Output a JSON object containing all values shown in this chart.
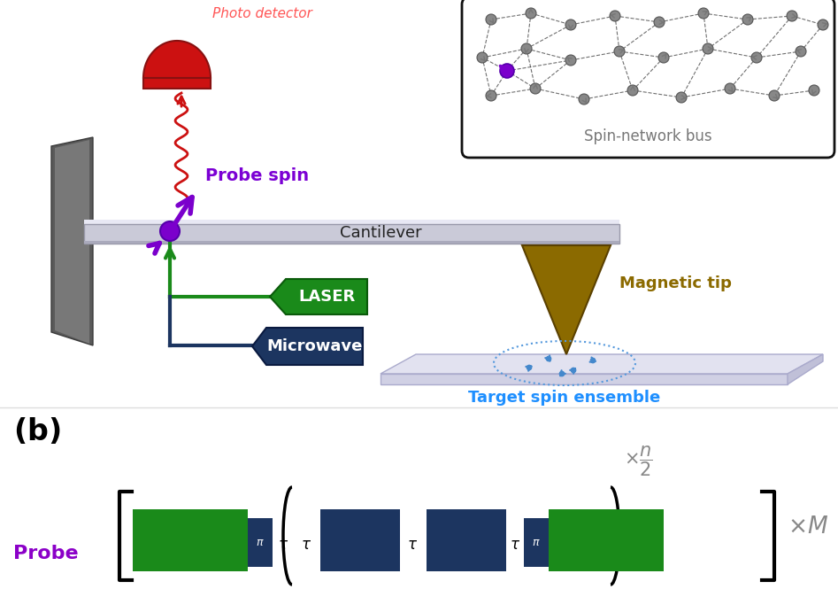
{
  "probe_label": "Probe",
  "probe_color": "#8B00C8",
  "probe_spin_label": "Probe spin",
  "probe_spin_color": "#7B00D4",
  "cantilever_label": "Cantilever",
  "cantilever_color_top": "#E0E0EE",
  "cantilever_color_bottom": "#B8B8CC",
  "laser_label": "LASER",
  "laser_color": "#1A8A1A",
  "microwave_label": "Microwave",
  "microwave_color": "#1C3560",
  "magnetic_tip_label": "Magnetic tip",
  "magnetic_tip_color": "#8B6A00",
  "target_spin_label": "Target spin ensemble",
  "target_spin_color": "#1E8FFF",
  "spin_network_label": "Spin-network bus",
  "spin_network_color": "#888888",
  "green_pulse_color": "#1A8A1A",
  "blue_pulse_color": "#1C3560",
  "bg_color": "#FFFFFF",
  "wall_color": "#6A6A6A",
  "photo_detector_color": "#CC0000",
  "photo_detector_label": "Photo detector"
}
